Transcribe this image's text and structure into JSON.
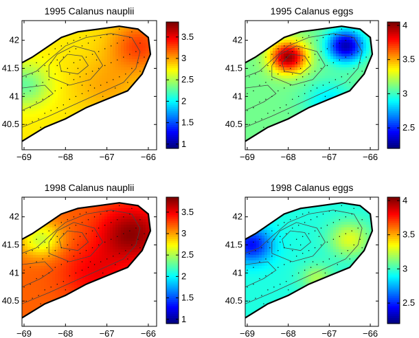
{
  "figure": {
    "panels": [
      {
        "title": "1995 Calanus nauplii"
      },
      {
        "title": "1995 Calanus eggs"
      },
      {
        "title": "1998 Calanus nauplii"
      },
      {
        "title": "1998 Calanus eggs"
      }
    ]
  },
  "colormap": "jet",
  "chart_data": [
    {
      "type": "heatmap",
      "title": "1995 Calanus nauplii",
      "xlabel": "",
      "ylabel": "",
      "x_ticks": [
        "−69",
        "−68",
        "−67",
        "−66"
      ],
      "x_tick_values": [
        -69,
        -68,
        -67,
        -66
      ],
      "y_ticks": [
        "40.5",
        "41",
        "41.5",
        "42"
      ],
      "y_tick_values": [
        40.5,
        41,
        41.5,
        42
      ],
      "xlim": [
        -69.05,
        -65.8
      ],
      "ylim": [
        40.05,
        42.35
      ],
      "colorbar": {
        "range": [
          0.9,
          3.85
        ],
        "ticks": [
          "1",
          "1.5",
          "2",
          "2.5",
          "3",
          "3.5"
        ],
        "tick_values": [
          1,
          1.5,
          2,
          2.5,
          3,
          3.5
        ]
      },
      "grid": false,
      "field_peaks": [
        {
          "lon": -66.2,
          "lat": 41.9,
          "value": 3.3,
          "spread": 0.7
        },
        {
          "lon": -67.0,
          "lat": 41.2,
          "value": 3.0,
          "spread": 0.8
        },
        {
          "lon": -69.0,
          "lat": 41.2,
          "value": 2.3,
          "spread": 0.6
        }
      ],
      "field_base": 2.8
    },
    {
      "type": "heatmap",
      "title": "1995 Calanus eggs",
      "xlabel": "",
      "ylabel": "",
      "x_ticks": [
        "−69",
        "−68",
        "−67",
        "−66"
      ],
      "x_tick_values": [
        -69,
        -68,
        -67,
        -66
      ],
      "y_ticks": [
        "40.5",
        "41",
        "41.5",
        "42"
      ],
      "y_tick_values": [
        40.5,
        41,
        41.5,
        42
      ],
      "xlim": [
        -69.05,
        -65.8
      ],
      "ylim": [
        40.05,
        42.35
      ],
      "colorbar": {
        "range": [
          2.2,
          4.05
        ],
        "ticks": [
          "2.5",
          "3",
          "3.5",
          "4"
        ],
        "tick_values": [
          2.5,
          3,
          3.5,
          4
        ]
      },
      "grid": false,
      "field_peaks": [
        {
          "lon": -68.0,
          "lat": 41.7,
          "value": 4.0,
          "spread": 0.45
        },
        {
          "lon": -66.6,
          "lat": 41.9,
          "value": 2.3,
          "spread": 0.45
        },
        {
          "lon": -67.0,
          "lat": 40.9,
          "value": 2.85,
          "spread": 0.6
        }
      ],
      "field_base": 3.1
    },
    {
      "type": "heatmap",
      "title": "1998 Calanus nauplii",
      "xlabel": "",
      "ylabel": "",
      "x_ticks": [
        "−69",
        "−68",
        "−67",
        "−66"
      ],
      "x_tick_values": [
        -69,
        -68,
        -67,
        -66
      ],
      "y_ticks": [
        "40.5",
        "41",
        "41.5",
        "42"
      ],
      "y_tick_values": [
        40.5,
        41,
        41.5,
        42
      ],
      "xlim": [
        -69.05,
        -65.8
      ],
      "ylim": [
        40.05,
        42.35
      ],
      "colorbar": {
        "range": [
          0.9,
          3.85
        ],
        "ticks": [
          "1",
          "1.5",
          "2",
          "2.5",
          "3",
          "3.5"
        ],
        "tick_values": [
          1,
          1.5,
          2,
          2.5,
          3,
          3.5
        ]
      },
      "grid": false,
      "field_peaks": [
        {
          "lon": -66.4,
          "lat": 41.7,
          "value": 3.8,
          "spread": 0.8
        },
        {
          "lon": -67.3,
          "lat": 41.0,
          "value": 3.5,
          "spread": 0.8
        },
        {
          "lon": -68.6,
          "lat": 41.6,
          "value": 2.6,
          "spread": 0.5
        }
      ],
      "field_base": 3.2
    },
    {
      "type": "heatmap",
      "title": "1998 Calanus eggs",
      "xlabel": "",
      "ylabel": "",
      "x_ticks": [
        "−69",
        "−68",
        "−67",
        "−66"
      ],
      "x_tick_values": [
        -69,
        -68,
        -67,
        -66
      ],
      "y_ticks": [
        "40.5",
        "41",
        "41.5",
        "42"
      ],
      "y_tick_values": [
        40.5,
        41,
        41.5,
        42
      ],
      "xlim": [
        -69.05,
        -65.8
      ],
      "ylim": [
        40.05,
        42.35
      ],
      "colorbar": {
        "range": [
          2.2,
          4.05
        ],
        "ticks": [
          "2.5",
          "3",
          "3.5",
          "4"
        ],
        "tick_values": [
          2.5,
          3,
          3.5,
          4
        ]
      },
      "grid": false,
      "field_peaks": [
        {
          "lon": -66.5,
          "lat": 41.6,
          "value": 3.3,
          "spread": 0.5
        },
        {
          "lon": -68.9,
          "lat": 41.5,
          "value": 2.45,
          "spread": 0.5
        },
        {
          "lon": -67.3,
          "lat": 40.9,
          "value": 3.2,
          "spread": 0.4
        }
      ],
      "field_base": 2.95
    }
  ],
  "bank_outline": [
    [
      -69.05,
      40.2
    ],
    [
      -68.5,
      40.45
    ],
    [
      -68.0,
      40.6
    ],
    [
      -67.5,
      40.8
    ],
    [
      -67.0,
      40.95
    ],
    [
      -66.5,
      41.1
    ],
    [
      -66.15,
      41.4
    ],
    [
      -65.95,
      41.75
    ],
    [
      -66.0,
      42.05
    ],
    [
      -66.25,
      42.2
    ],
    [
      -66.7,
      42.25
    ],
    [
      -67.2,
      42.2
    ],
    [
      -67.7,
      42.15
    ],
    [
      -68.1,
      42.05
    ],
    [
      -68.5,
      41.85
    ],
    [
      -68.8,
      41.7
    ],
    [
      -69.05,
      41.6
    ]
  ],
  "inner_contours": [
    [
      [
        -69.05,
        40.45
      ],
      [
        -68.4,
        40.65
      ],
      [
        -67.8,
        40.85
      ],
      [
        -67.2,
        41.05
      ],
      [
        -66.6,
        41.25
      ],
      [
        -66.3,
        41.5
      ],
      [
        -66.2,
        41.8
      ],
      [
        -66.4,
        42.05
      ],
      [
        -66.9,
        42.12
      ],
      [
        -67.5,
        42.05
      ],
      [
        -68.0,
        41.9
      ],
      [
        -68.4,
        41.65
      ],
      [
        -68.7,
        41.45
      ],
      [
        -69.05,
        41.35
      ]
    ],
    [
      [
        -68.4,
        41.35
      ],
      [
        -67.9,
        41.2
      ],
      [
        -67.4,
        41.3
      ],
      [
        -67.1,
        41.55
      ],
      [
        -67.3,
        41.8
      ],
      [
        -67.8,
        41.9
      ],
      [
        -68.2,
        41.75
      ],
      [
        -68.4,
        41.55
      ],
      [
        -68.4,
        41.35
      ]
    ],
    [
      [
        -68.1,
        41.45
      ],
      [
        -67.7,
        41.4
      ],
      [
        -67.45,
        41.55
      ],
      [
        -67.6,
        41.72
      ],
      [
        -67.95,
        41.75
      ],
      [
        -68.15,
        41.6
      ],
      [
        -68.1,
        41.45
      ]
    ],
    [
      [
        -69.05,
        40.75
      ],
      [
        -68.6,
        40.9
      ],
      [
        -68.3,
        41.05
      ],
      [
        -68.5,
        41.2
      ],
      [
        -69.05,
        41.15
      ]
    ]
  ],
  "stations": [
    [
      -68.85,
      41.55
    ],
    [
      -68.7,
      41.6
    ],
    [
      -68.55,
      41.7
    ],
    [
      -68.4,
      41.75
    ],
    [
      -68.25,
      41.85
    ],
    [
      -68.1,
      41.9
    ],
    [
      -67.95,
      41.95
    ],
    [
      -67.8,
      42.0
    ],
    [
      -67.65,
      42.05
    ],
    [
      -67.5,
      42.08
    ],
    [
      -68.95,
      41.35
    ],
    [
      -68.8,
      41.4
    ],
    [
      -68.65,
      41.45
    ],
    [
      -68.5,
      41.55
    ],
    [
      -68.35,
      41.6
    ],
    [
      -68.2,
      41.65
    ],
    [
      -68.05,
      41.7
    ],
    [
      -67.9,
      41.8
    ],
    [
      -67.75,
      41.85
    ],
    [
      -67.6,
      41.9
    ],
    [
      -67.45,
      41.95
    ],
    [
      -67.3,
      42.0
    ],
    [
      -67.15,
      42.05
    ],
    [
      -67.0,
      42.1
    ],
    [
      -66.85,
      42.1
    ],
    [
      -69.0,
      41.05
    ],
    [
      -68.85,
      41.1
    ],
    [
      -68.7,
      41.2
    ],
    [
      -68.55,
      41.25
    ],
    [
      -68.4,
      41.3
    ],
    [
      -68.25,
      41.4
    ],
    [
      -68.1,
      41.45
    ],
    [
      -67.95,
      41.5
    ],
    [
      -67.8,
      41.6
    ],
    [
      -67.65,
      41.65
    ],
    [
      -67.5,
      41.7
    ],
    [
      -67.35,
      41.75
    ],
    [
      -67.2,
      41.8
    ],
    [
      -67.05,
      41.85
    ],
    [
      -66.9,
      41.9
    ],
    [
      -66.75,
      41.95
    ],
    [
      -66.6,
      42.0
    ],
    [
      -66.45,
      42.05
    ],
    [
      -69.0,
      40.75
    ],
    [
      -68.85,
      40.8
    ],
    [
      -68.7,
      40.9
    ],
    [
      -68.55,
      40.95
    ],
    [
      -68.4,
      41.0
    ],
    [
      -68.25,
      41.1
    ],
    [
      -68.1,
      41.15
    ],
    [
      -67.95,
      41.2
    ],
    [
      -67.8,
      41.3
    ],
    [
      -67.65,
      41.35
    ],
    [
      -67.5,
      41.4
    ],
    [
      -67.35,
      41.45
    ],
    [
      -67.2,
      41.5
    ],
    [
      -67.05,
      41.55
    ],
    [
      -66.9,
      41.6
    ],
    [
      -66.75,
      41.65
    ],
    [
      -66.6,
      41.7
    ],
    [
      -66.45,
      41.75
    ],
    [
      -66.3,
      41.8
    ],
    [
      -68.95,
      40.5
    ],
    [
      -68.8,
      40.55
    ],
    [
      -68.65,
      40.6
    ],
    [
      -68.5,
      40.7
    ],
    [
      -68.35,
      40.75
    ],
    [
      -68.2,
      40.8
    ],
    [
      -68.05,
      40.85
    ],
    [
      -67.9,
      40.95
    ],
    [
      -67.75,
      41.0
    ],
    [
      -67.6,
      41.05
    ],
    [
      -67.45,
      41.1
    ],
    [
      -67.3,
      41.15
    ],
    [
      -67.15,
      41.2
    ],
    [
      -67.0,
      41.25
    ],
    [
      -66.85,
      41.3
    ],
    [
      -66.7,
      41.35
    ],
    [
      -66.55,
      41.4
    ],
    [
      -66.4,
      41.5
    ],
    [
      -66.25,
      41.6
    ],
    [
      -68.3,
      41.95
    ],
    [
      -68.6,
      41.8
    ],
    [
      -67.1,
      41.0
    ],
    [
      -66.8,
      41.15
    ],
    [
      -66.5,
      41.25
    ],
    [
      -66.2,
      41.45
    ],
    [
      -66.1,
      41.7
    ],
    [
      -66.2,
      41.95
    ],
    [
      -66.4,
      42.15
    ],
    [
      -66.7,
      42.2
    ],
    [
      -67.4,
      41.2
    ],
    [
      -68.0,
      40.7
    ],
    [
      -68.6,
      40.45
    ],
    [
      -67.7,
      41.5
    ],
    [
      -68.2,
      41.55
    ],
    [
      -67.6,
      41.2
    ],
    [
      -67.9,
      41.4
    ],
    [
      -68.45,
      41.45
    ],
    [
      -67.25,
      41.65
    ]
  ]
}
